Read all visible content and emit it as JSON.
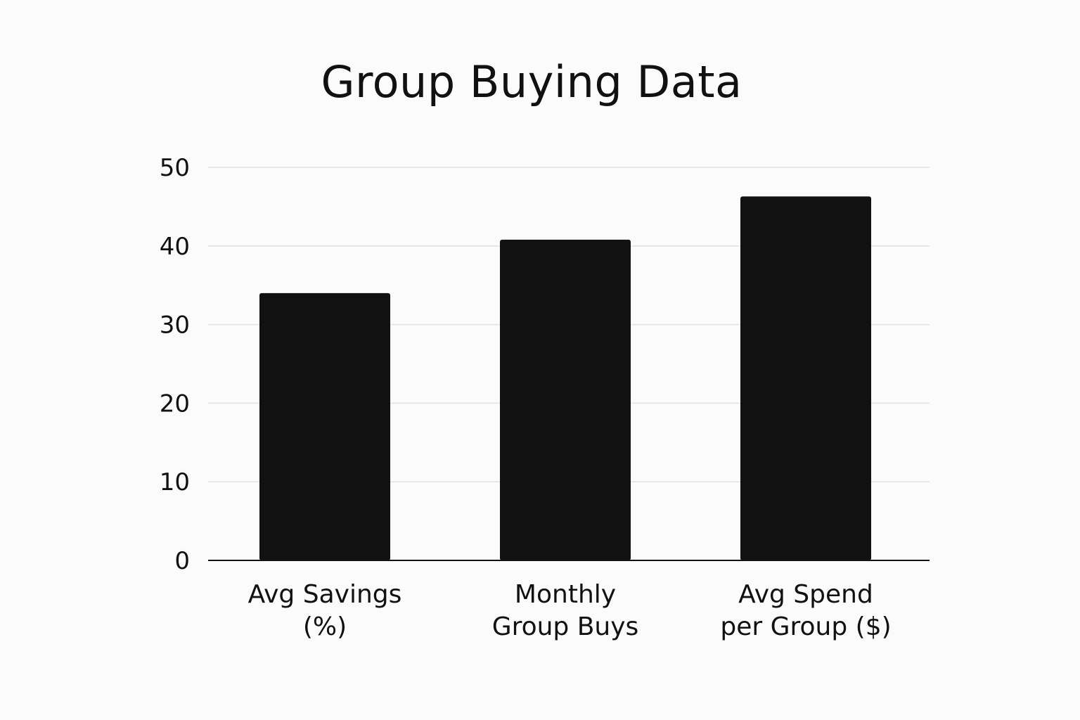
{
  "chart_data": {
    "type": "bar",
    "title": "Group Buying Data",
    "xlabel": "",
    "ylabel": "",
    "categories": [
      [
        "Avg Savings",
        "(%)"
      ],
      [
        "Monthly",
        "Group Buys"
      ],
      [
        "Avg Spend",
        "per Group ($)"
      ]
    ],
    "values": [
      34,
      40.8,
      46.3
    ],
    "ylim": [
      0,
      50
    ],
    "yticks": [
      0,
      10,
      20,
      30,
      40,
      50
    ],
    "grid": true,
    "legend": "none",
    "colors": {
      "bar": "#111111",
      "grid": "#e2e2e2",
      "axis": "#111111",
      "background": "#fbfbfb"
    }
  }
}
